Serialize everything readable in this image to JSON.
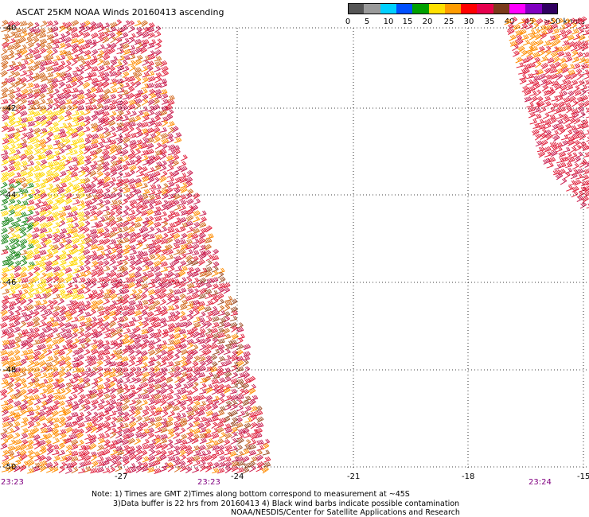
{
  "title": "ASCAT 25KM NOAA Winds 20160413 ascending",
  "colorbar": {
    "segments": [
      {
        "color": "#555555"
      },
      {
        "color": "#9a9a9a"
      },
      {
        "color": "#00d0ff"
      },
      {
        "color": "#0050ff"
      },
      {
        "color": "#00a000"
      },
      {
        "color": "#ffe000"
      },
      {
        "color": "#ff9c00"
      },
      {
        "color": "#ff0000"
      },
      {
        "color": "#e6004d"
      },
      {
        "color": "#7a3a1a"
      },
      {
        "color": "#ff00ff"
      },
      {
        "color": "#8000c0"
      },
      {
        "color": "#300060"
      }
    ],
    "labels": [
      "0",
      "5",
      "10",
      "15",
      "20",
      "25",
      "30",
      "35",
      "40",
      "45",
      ">50 knots"
    ]
  },
  "lat_labels": [
    "-40",
    "-42",
    "-44",
    "-46",
    "-48",
    "-50"
  ],
  "lon_labels": [
    "-27",
    "-24",
    "-21",
    "-18",
    "-15"
  ],
  "time_labels": [
    {
      "text": "23:23",
      "color": "#800080"
    },
    {
      "text": "23:23",
      "color": "#800080"
    },
    {
      "text": "23:24",
      "color": "#800080"
    }
  ],
  "notes": [
    "Note: 1) Times are GMT 2)Times along bottom correspond to measurement at ~45S",
    "3)Data buffer is 22 hrs from 20160413 4) Black wind barbs indicate possible contamination",
    "NOAA/NESDIS/Center for Satellite Applications and Research"
  ],
  "swaths": {
    "west": {
      "colors": [
        "#e0203c",
        "#c81e50",
        "#d2691e",
        "#ff8c00",
        "#a0522d",
        "#b03050",
        "#ffd700",
        "#228b22"
      ]
    },
    "east": {
      "colors": [
        "#e0203c",
        "#ff8c00",
        "#c81e50",
        "#a0522d"
      ]
    }
  }
}
